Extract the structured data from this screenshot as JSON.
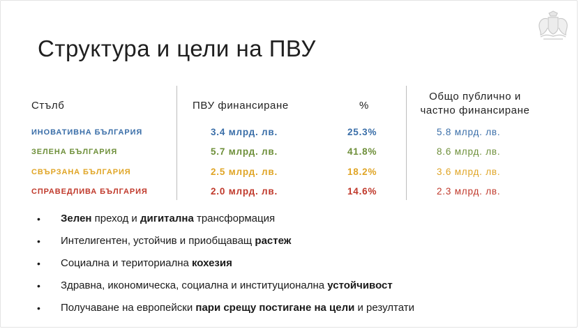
{
  "title": "Структура и цели на ПВУ",
  "emblem": "bulgarian-coat-of-arms-icon",
  "table": {
    "headers": {
      "pillar": "Стълб",
      "funding": "ПВУ финансиране",
      "percent": "%",
      "total_line1": "Общо публично и",
      "total_line2": "частно финансиране"
    },
    "rows": [
      {
        "name": "ИНОВАТИВНА БЪЛГАРИЯ",
        "funding": "3.4 млрд. лв.",
        "percent": "25.3%",
        "total": "5.8 млрд. лв.",
        "color": "#3a6ea8"
      },
      {
        "name": "ЗЕЛЕНА БЪЛГАРИЯ",
        "funding": "5.7 млрд. лв.",
        "percent": "41.8%",
        "total": "8.6 млрд. лв.",
        "color": "#6e8f3a"
      },
      {
        "name": "СВЪРЗАНА БЪЛГАРИЯ",
        "funding": "2.5 млрд. лв.",
        "percent": "18.2%",
        "total": "3.6 млрд. лв.",
        "color": "#e0a526"
      },
      {
        "name": "СПРАВЕДЛИВА БЪЛГАРИЯ",
        "funding": "2.0 млрд. лв.",
        "percent": "14.6%",
        "total": "2.3 млрд. лв.",
        "color": "#c0392b"
      }
    ]
  },
  "bullets": [
    {
      "parts": [
        {
          "t": "Зелен",
          "b": true
        },
        {
          "t": " преход и ",
          "b": false
        },
        {
          "t": "дигитална",
          "b": true
        },
        {
          "t": " трансформация",
          "b": false
        }
      ]
    },
    {
      "parts": [
        {
          "t": "Интелигентен, устойчив и приобщаващ ",
          "b": false
        },
        {
          "t": "растеж",
          "b": true
        }
      ]
    },
    {
      "parts": [
        {
          "t": "Социална и териториална ",
          "b": false
        },
        {
          "t": "кохезия",
          "b": true
        }
      ]
    },
    {
      "parts": [
        {
          "t": "Здравна, икономическа, социална и институционална ",
          "b": false
        },
        {
          "t": "устойчивост",
          "b": true
        }
      ]
    },
    {
      "parts": [
        {
          "t": "Получаване на европейски ",
          "b": false
        },
        {
          "t": "пари срещу постигане на цели",
          "b": true
        },
        {
          "t": " и резултати",
          "b": false
        }
      ]
    }
  ]
}
